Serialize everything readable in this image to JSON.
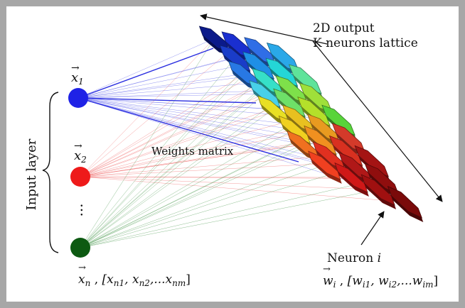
{
  "title_line1": "2D output",
  "title_line2": "K neurons lattice",
  "weights_label": "Weights matrix",
  "input_layer_label": "Input layer",
  "ellipsis": "···",
  "neuron_label": {
    "text": "Neuron",
    "var": "i"
  },
  "inputs": [
    {
      "symbol": "x",
      "sub": "1",
      "color": "#1f22e6"
    },
    {
      "symbol": "x",
      "sub": "2",
      "color": "#ee1a1a"
    },
    {
      "symbol": "",
      "sub": "",
      "color": "#0d5a12"
    }
  ],
  "xn_caption": {
    "symbol": "x",
    "sub": "n",
    "sep": " , ",
    "vec": "[x",
    "s1": "n1",
    "c1": ", x",
    "s2": "n2",
    "c2": ",...x",
    "s3": "nm",
    "end": "]"
  },
  "wi_caption": {
    "symbol": "w",
    "sub": "i",
    "sep": " , ",
    "vec": "[w",
    "s1": "i1",
    "c1": ", w",
    "s2": "i2",
    "c2": ",...w",
    "s3": "im",
    "end": "]"
  },
  "lattice_colors": [
    [
      "#0b1a8a",
      "#1a2fd0",
      "#2f6ee6",
      "#2aa8e8"
    ],
    [
      "#1a3cc8",
      "#1f8fe6",
      "#24d6d6",
      "#5fe39a"
    ],
    [
      "#2878e4",
      "#36e0c8",
      "#7ee04a",
      "#9fe03a"
    ],
    [
      "#48d0e8",
      "#6ee068",
      "#b4e02a",
      "#58d43a"
    ],
    [
      "#e8e024",
      "#e8c020",
      "#e89a20",
      "#d43a2a"
    ],
    [
      "#f0d020",
      "#f09020",
      "#d83020",
      "#a41414"
    ],
    [
      "#f07020",
      "#e03020",
      "#b01818",
      "#900e0e"
    ],
    [
      "#f04020",
      "#d01818",
      "#a01010",
      "#7a0a0a"
    ]
  ]
}
